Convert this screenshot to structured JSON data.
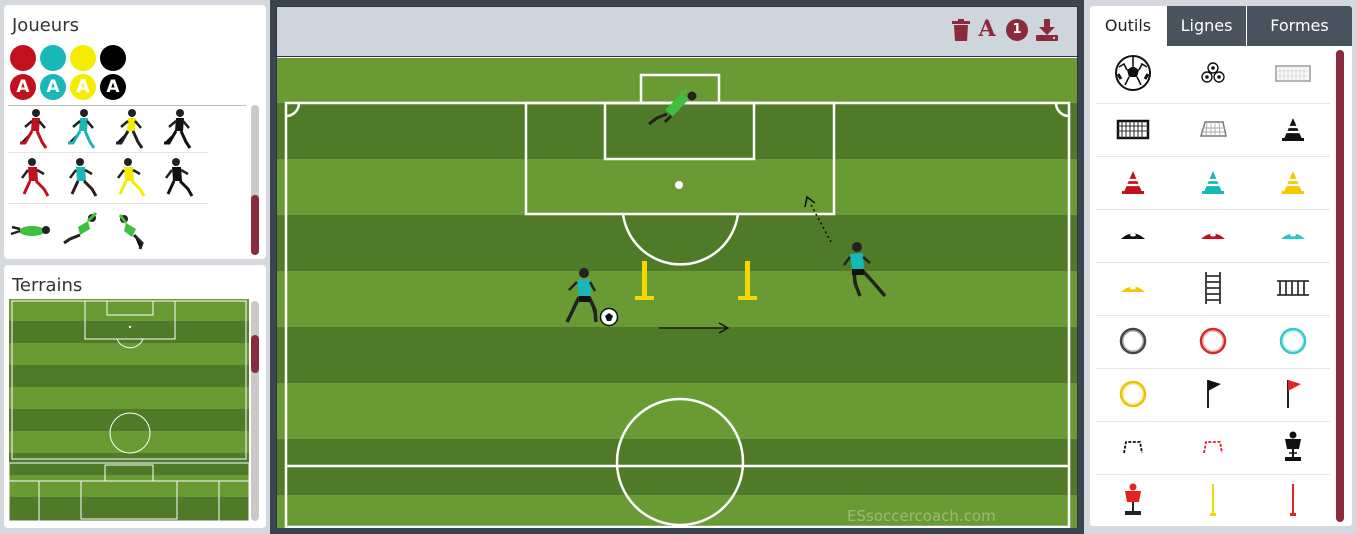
{
  "players_panel": {
    "title": "Joueurs",
    "colors": [
      "#c3101e",
      "#18b8b8",
      "#f5ec00",
      "#000000"
    ],
    "letter": "A",
    "jersey_rows": [
      [
        "#c3101e",
        "#18b8b8",
        "#f5ec00",
        "#111111"
      ],
      [
        "#c3101e",
        "#18b8b8",
        "#f5ec00",
        "#111111"
      ]
    ],
    "goalkeeper_color": "#3fbf3f"
  },
  "terrains_panel": {
    "title": "Terrains"
  },
  "toolbar": {
    "icons": [
      "trash-icon",
      "text-icon",
      "number-icon",
      "download-icon"
    ],
    "number_label": "1",
    "text_label": "A",
    "accent": "#8b2a3c"
  },
  "pitch": {
    "watermark": "ESsoccercoach.com",
    "stripe_light": "#6a9a33",
    "stripe_dark": "#4f7a28"
  },
  "tools_panel": {
    "tabs": [
      {
        "label": "Outils",
        "active": true
      },
      {
        "label": "Lignes",
        "active": false
      },
      {
        "label": "Formes",
        "active": false
      }
    ],
    "items": [
      "soccer-ball",
      "ball-group",
      "goal-white",
      "goal-black",
      "goal-outline",
      "cone-black",
      "cone-red",
      "cone-teal",
      "cone-yellow",
      "disc-black",
      "disc-red",
      "disc-teal",
      "disc-yellow",
      "ladder-vertical",
      "ladder-horizontal",
      "hoop-black",
      "hoop-red",
      "hoop-teal",
      "hoop-yellow",
      "flag-black",
      "flag-red",
      "hurdle-black",
      "hurdle-red",
      "mannequin-black",
      "mannequin-red",
      "pole-yellow",
      "pole-red"
    ]
  }
}
